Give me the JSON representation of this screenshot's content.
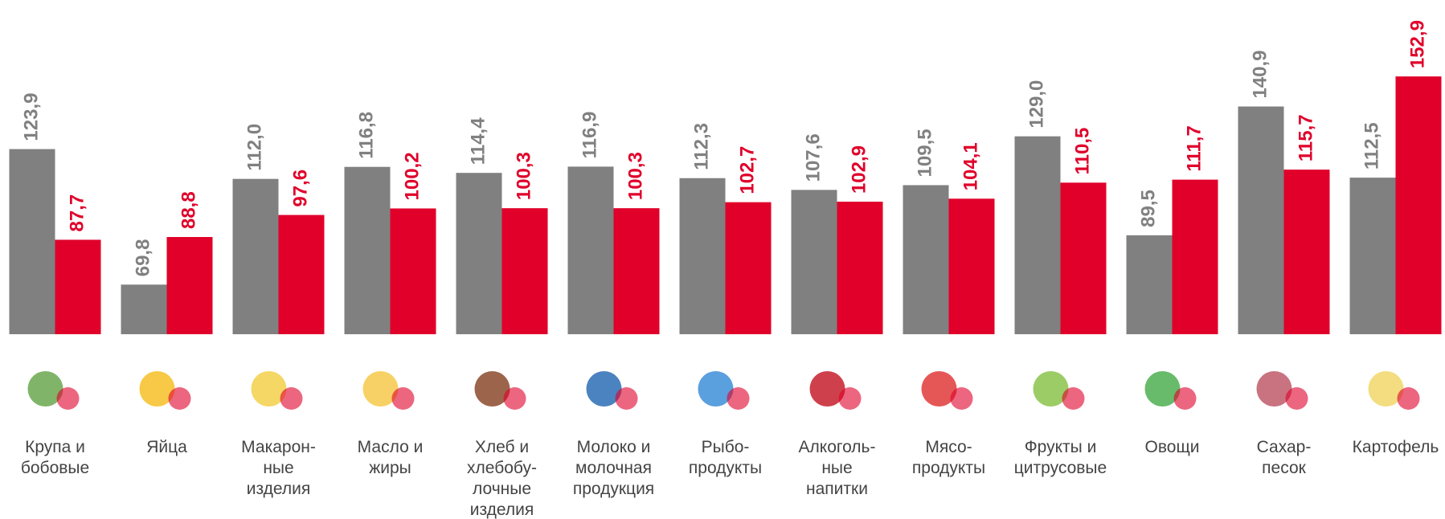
{
  "chart_data": {
    "type": "bar",
    "categories": [
      "Крупа и\nбобовые",
      "Яйца",
      "Макарон-\nные\nизделия",
      "Масло и\nжиры",
      "Хлеб и\nхлебобу-\nлочные\nизделия",
      "Молоко и\nмолочная\nпродукция",
      "Рыбо-\nпродукты",
      "Алкоголь-\nные\nнапитки",
      "Мясо-\nпродукты",
      "Фрукты и\nцитрусовые",
      "Овощи",
      "Сахар-\nпесок",
      "Картофель"
    ],
    "series": [
      {
        "color": "#808080",
        "values": [
          123.9,
          69.8,
          112.0,
          116.8,
          114.4,
          116.9,
          112.3,
          107.6,
          109.5,
          129.0,
          89.5,
          140.9,
          112.5
        ],
        "value_labels": [
          "123,9",
          "69,8",
          "112,0",
          "116,8",
          "114,4",
          "116,9",
          "112,3",
          "107,6",
          "109,5",
          "129,0",
          "89,5",
          "140,9",
          "112,5"
        ]
      },
      {
        "color": "#e0002a",
        "values": [
          87.7,
          88.8,
          97.6,
          100.2,
          100.3,
          100.3,
          102.7,
          102.9,
          104.1,
          110.5,
          111.7,
          115.7,
          152.9
        ],
        "value_labels": [
          "87,7",
          "88,8",
          "97,6",
          "100,2",
          "100,3",
          "100,3",
          "102,7",
          "102,9",
          "104,1",
          "110,5",
          "111,7",
          "115,7",
          "152,9"
        ]
      }
    ],
    "ylim": [
      50,
      160
    ]
  }
}
